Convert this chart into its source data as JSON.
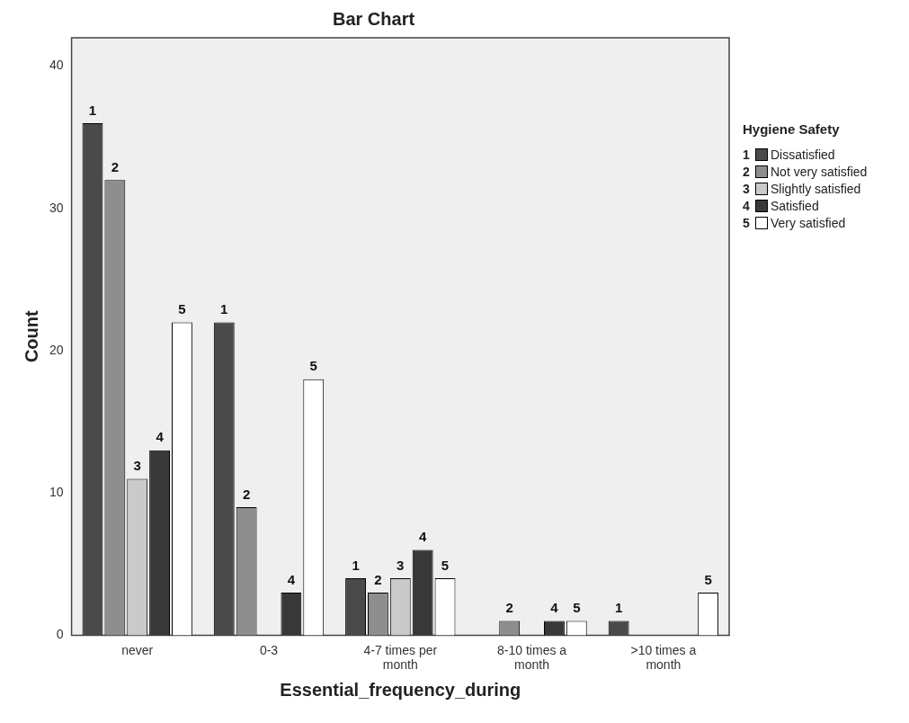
{
  "chart_data": {
    "type": "bar",
    "title": "Bar Chart",
    "xlabel": "Essential_frequency_during",
    "ylabel": "Count",
    "legend_title": "Hygiene Safety",
    "legend": "right",
    "grid": false,
    "categories": [
      "never",
      "0-3",
      "4-7 times per month",
      "8-10 times a month",
      ">10 times a month"
    ],
    "ylim": [
      0,
      42
    ],
    "yticks": [
      0,
      10,
      20,
      30,
      40
    ],
    "series": [
      {
        "name": "Dissatisfied",
        "color": "#4a4a4a",
        "values": [
          36,
          22,
          4,
          0,
          1
        ]
      },
      {
        "name": "Not very satisfied",
        "color": "#8e8e8e",
        "values": [
          32,
          9,
          3,
          1,
          0
        ]
      },
      {
        "name": "Slightly satisfied",
        "color": "#cacaca",
        "values": [
          11,
          0,
          4,
          0,
          0
        ]
      },
      {
        "name": "Satisfied",
        "color": "#383838",
        "values": [
          13,
          3,
          6,
          1,
          0
        ]
      },
      {
        "name": "Very satisfied",
        "color": "#ffffff",
        "values": [
          22,
          18,
          4,
          1,
          3
        ]
      }
    ],
    "annotations": [
      "1",
      "2",
      "3",
      "4",
      "5",
      "1",
      "2",
      "4",
      "5",
      "1",
      "2",
      "3",
      "4",
      "5",
      "2",
      "4",
      "5",
      "1",
      "5"
    ]
  }
}
